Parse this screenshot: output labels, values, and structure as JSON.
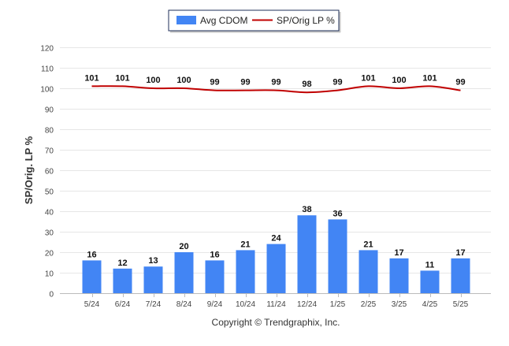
{
  "colors": {
    "bar": "#4285f4",
    "line": "#c00000",
    "grid": "#e6e6e6",
    "axis_text": "#444444",
    "label_text": "#111111",
    "legend_border": "#1f2f5a"
  },
  "legend": {
    "items": [
      {
        "label": "Avg CDOM",
        "kind": "bar"
      },
      {
        "label": "SP/Orig LP %",
        "kind": "line"
      }
    ]
  },
  "copyright": "Copyright © Trendgraphix, Inc.",
  "chart_data": {
    "type": "bar",
    "categories": [
      "5/24",
      "6/24",
      "7/24",
      "8/24",
      "9/24",
      "10/24",
      "11/24",
      "12/24",
      "1/25",
      "2/25",
      "3/25",
      "4/25",
      "5/25"
    ],
    "series": [
      {
        "name": "Avg CDOM",
        "type": "bar",
        "values": [
          16,
          12,
          13,
          20,
          16,
          21,
          24,
          38,
          36,
          21,
          17,
          11,
          17
        ]
      },
      {
        "name": "SP/Orig LP %",
        "type": "line",
        "values": [
          101,
          101,
          100,
          100,
          99,
          99,
          99,
          98,
          99,
          101,
          100,
          101,
          99
        ]
      }
    ],
    "ylabel": "SP/Orig. LP %",
    "ylim": [
      0,
      120
    ],
    "yticks": [
      0,
      10,
      20,
      30,
      40,
      50,
      60,
      70,
      80,
      90,
      100,
      110,
      120
    ],
    "grid": true,
    "legend_position": "top-center"
  }
}
